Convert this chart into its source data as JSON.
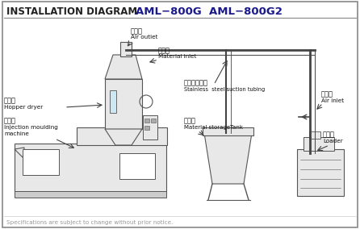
{
  "title1": "INSTALLATION DIAGRAM",
  "title2": "AML−800G  AML−800G2",
  "bg_color": "#ffffff",
  "footer": "Specifications are subject to change without prior notice.",
  "labels": {
    "air_outlet_cn": "排風口",
    "air_outlet_en": "Air outlet",
    "material_inlet_cn": "吸料口",
    "material_inlet_en": "Material inlet",
    "hopper_dryer_cn": "帹燥機",
    "hopper_dryer_en": "Hopper dryer",
    "injection_cn": "注塑機",
    "injection_en1": "Injection moulding",
    "injection_en2": "machine",
    "suction_tube_cn": "不锈鴻吸料管",
    "suction_tube_en": "Stainless  steel suction tubing",
    "air_inlet_cn": "吸風口",
    "air_inlet_en": "Air inlet",
    "storage_cn": "備料櫃",
    "storage_en": "Material storageTank",
    "loader_cn": "吸料機",
    "loader_en": "Loader"
  },
  "line_color": "#444444",
  "machine_fill": "#e8e8e8",
  "machine_edge": "#555555"
}
